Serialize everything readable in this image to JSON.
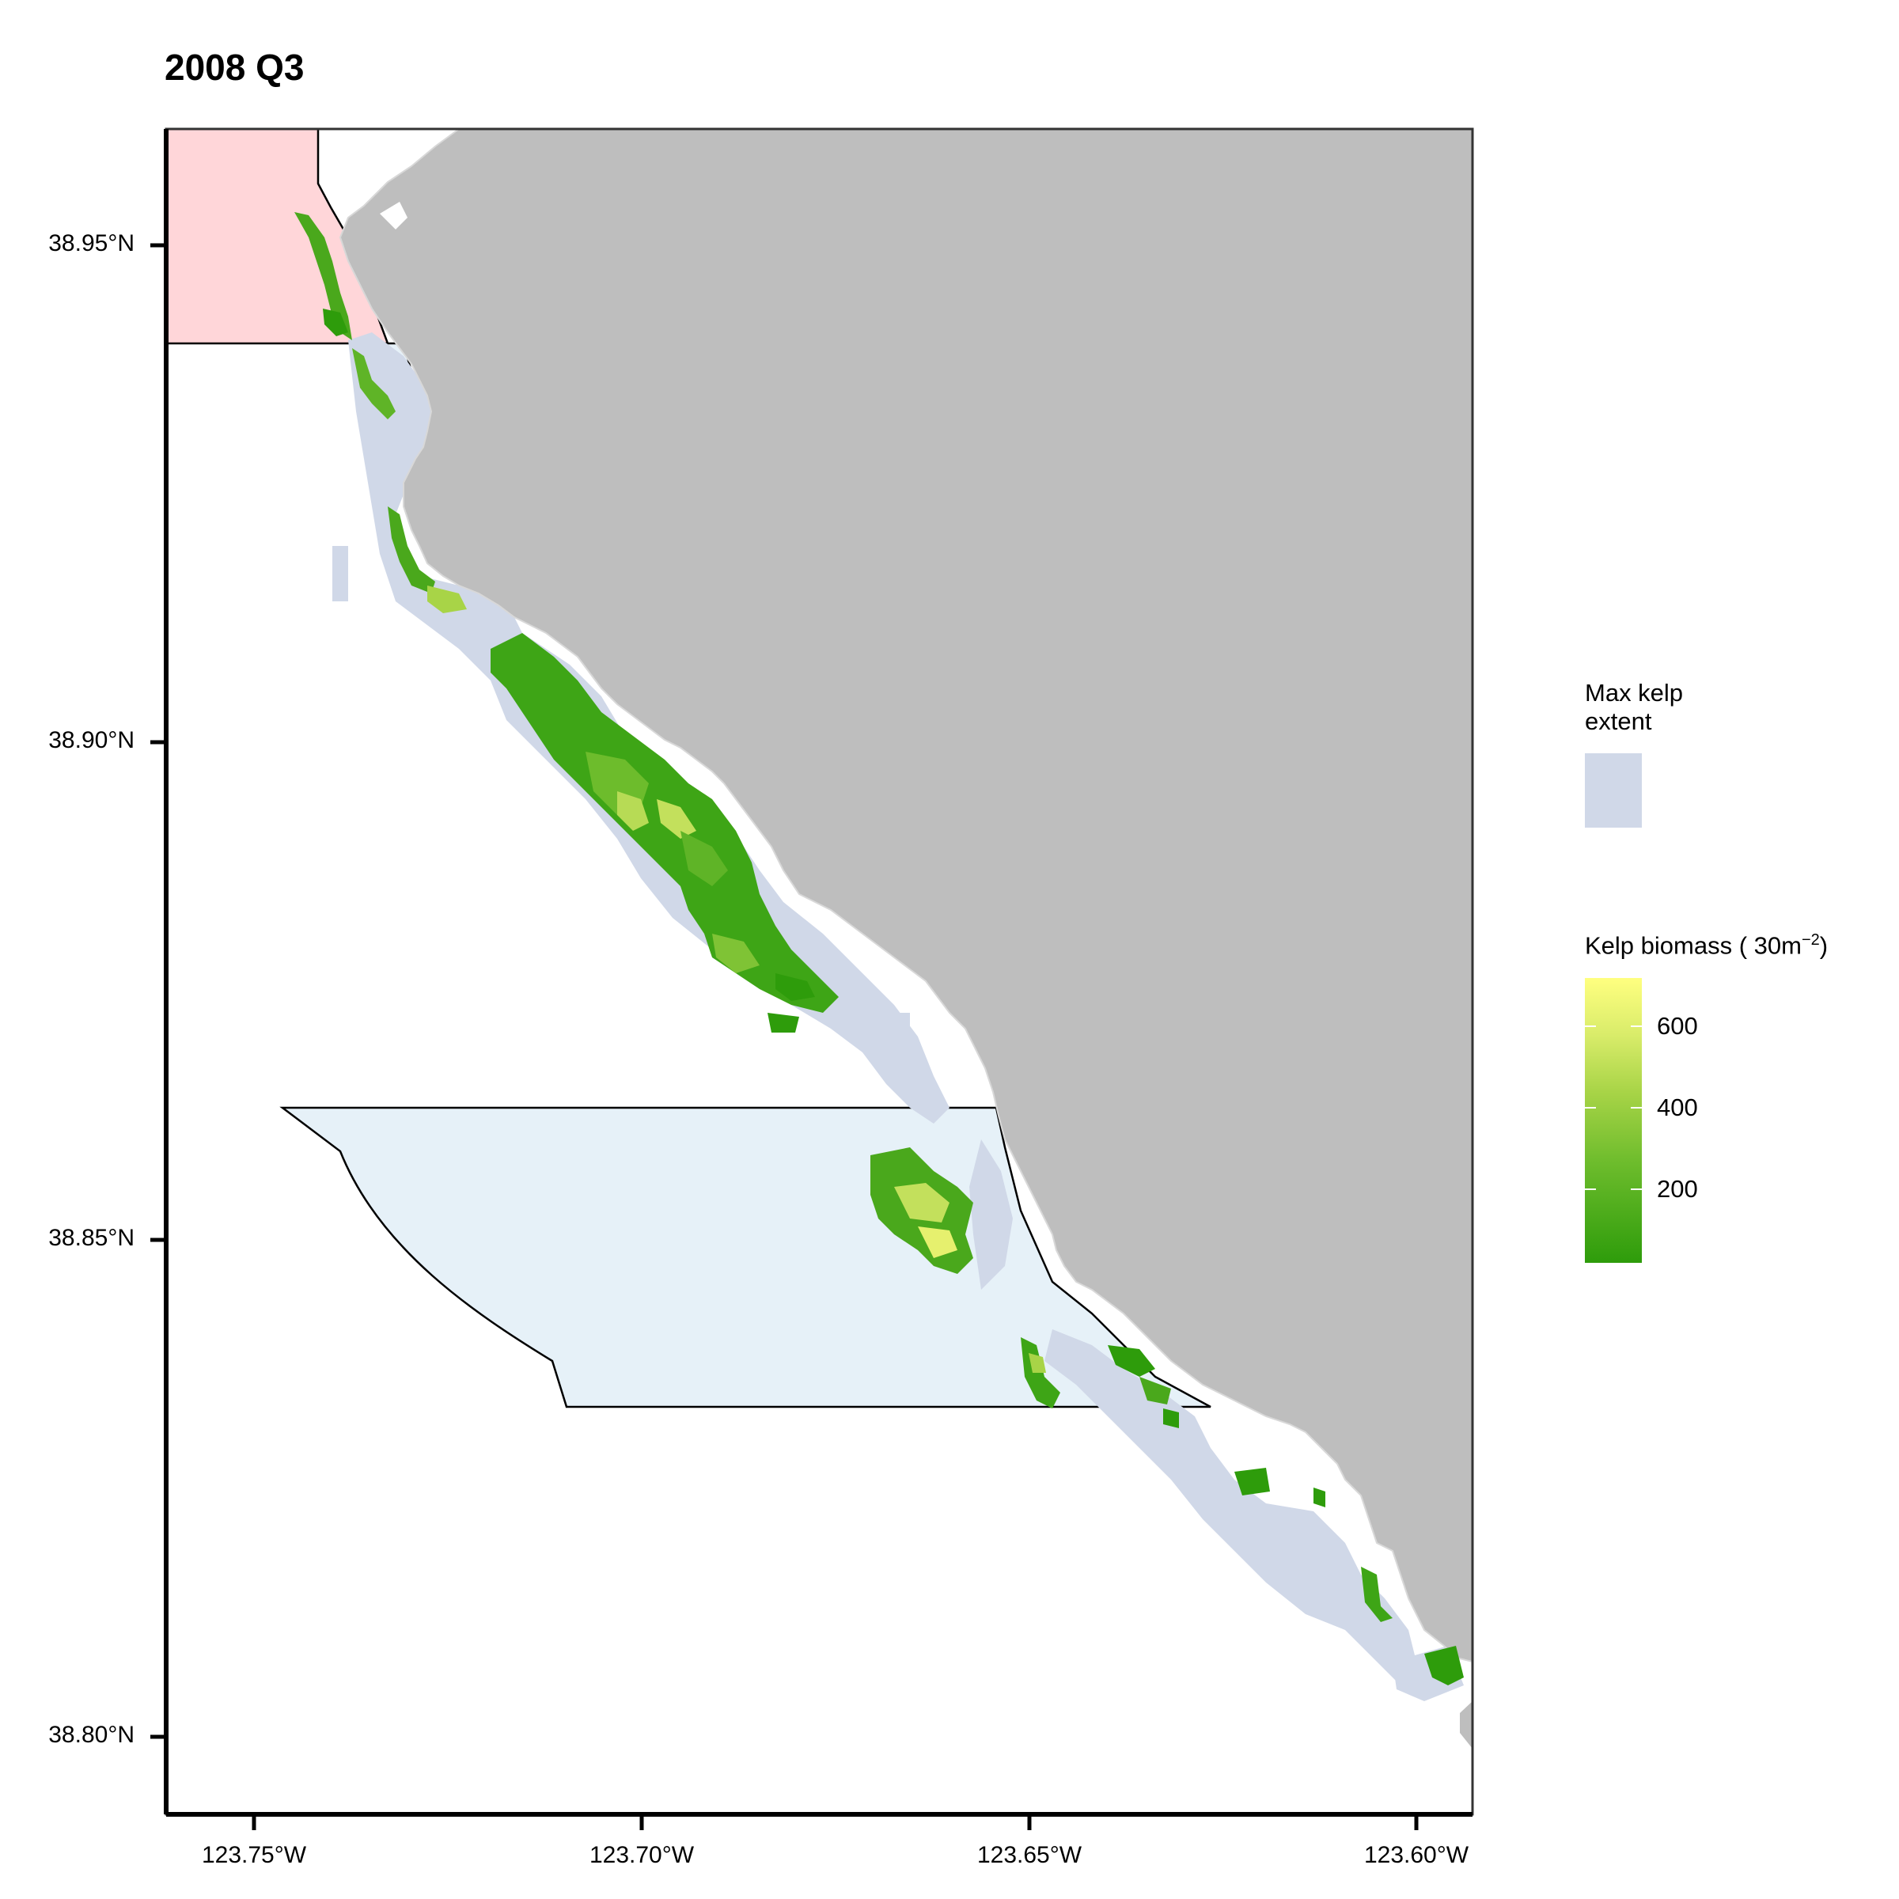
{
  "title": "2008 Q3",
  "axes": {
    "y_ticks": [
      "38.95°N",
      "38.90°N",
      "38.85°N",
      "38.80°N"
    ],
    "x_ticks": [
      "123.75°W",
      "123.70°W",
      "123.65°W",
      "123.60°W"
    ]
  },
  "legend": {
    "extent_title": "Max kelp extent",
    "extent_title_line1": "Max kelp",
    "extent_title_line2": "extent",
    "biomass_title": "Kelp biomass",
    "biomass_unit": "( 30m",
    "biomass_exp": "−2",
    "biomass_close": ")",
    "biomass_ticks": [
      "600",
      "400",
      "200"
    ],
    "biomass_range": [
      30,
      720
    ]
  },
  "colors": {
    "land": "#bebebe",
    "water": "#ffffff",
    "kelp_extent": "#d0d8e8",
    "mpa_north": "#ffd6d9",
    "mpa_south": "#e6f1f8",
    "biomass_low": "#2e9c0b",
    "biomass_mid": "#a8d447",
    "biomass_high": "#ffff80"
  }
}
